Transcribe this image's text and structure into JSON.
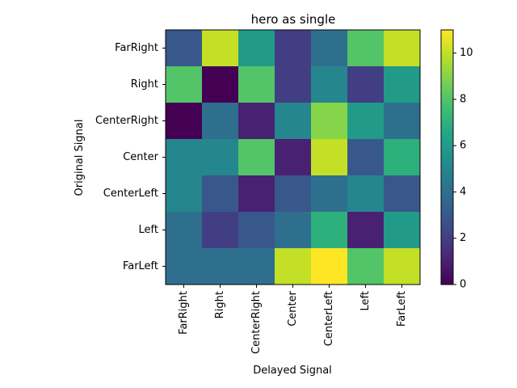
{
  "chart_data": {
    "type": "heatmap",
    "title": "hero as single",
    "xlabel": "Delayed Signal",
    "ylabel": "Original Signal",
    "x_categories": [
      "FarRight",
      "Right",
      "CenterRight",
      "Center",
      "CenterLeft",
      "Left",
      "FarLeft"
    ],
    "y_categories": [
      "FarRight",
      "Right",
      "CenterRight",
      "Center",
      "CenterLeft",
      "Left",
      "FarLeft"
    ],
    "values": [
      [
        3,
        10,
        6,
        2,
        4,
        8,
        10
      ],
      [
        8,
        0,
        8,
        2,
        5,
        2,
        6
      ],
      [
        0,
        4,
        1,
        5,
        9,
        6,
        4
      ],
      [
        5,
        5,
        8,
        1,
        10,
        3,
        7
      ],
      [
        5,
        3,
        1,
        3,
        4,
        5,
        3
      ],
      [
        4,
        2,
        3,
        4,
        7,
        1,
        6
      ],
      [
        4,
        4,
        4,
        10,
        11,
        8,
        10
      ]
    ],
    "colormap": "viridis",
    "vmin": 0,
    "vmax": 11,
    "colorbar_ticks": [
      "0",
      "2",
      "4",
      "6",
      "8",
      "10"
    ],
    "colorbar_tick_values": [
      0,
      2,
      4,
      6,
      8,
      10
    ]
  }
}
